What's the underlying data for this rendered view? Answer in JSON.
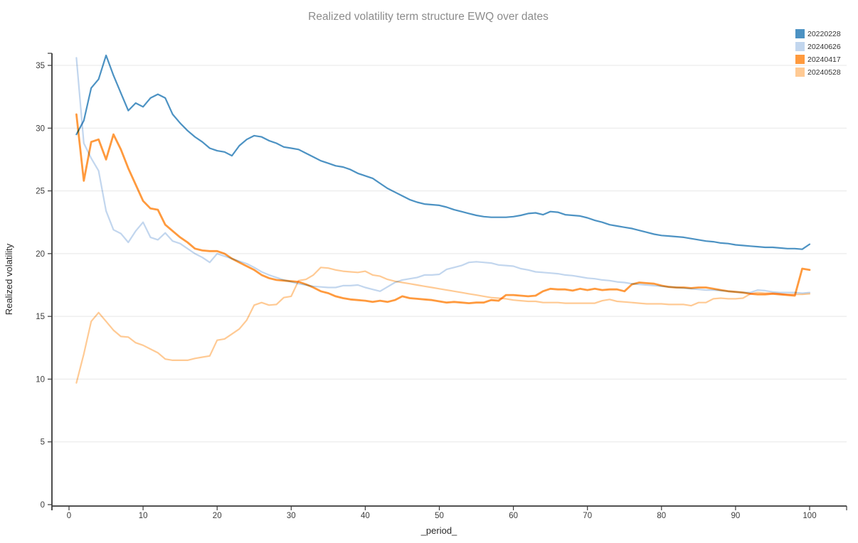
{
  "title": "Realized volatility term structure EWQ over dates",
  "chart_data": {
    "type": "line",
    "title": "Realized volatility term structure EWQ over dates",
    "xlabel": "_period_",
    "ylabel": "Realized volatility",
    "xlim": [
      -2.3,
      105
    ],
    "ylim": [
      0,
      36
    ],
    "x_ticks": [
      0,
      10,
      20,
      30,
      40,
      50,
      60,
      70,
      80,
      90,
      100
    ],
    "y_ticks": [
      0,
      5,
      10,
      15,
      20,
      25,
      30,
      35
    ],
    "grid": "horizontal-only",
    "legend_position": "top-right",
    "x_start": 1,
    "x_step": 1,
    "series": [
      {
        "name": "20220228",
        "color": "#4c92c3",
        "width": 2.2,
        "values": [
          29.5,
          30.6,
          33.2,
          33.9,
          35.8,
          34.2,
          32.8,
          31.4,
          32.0,
          31.7,
          32.4,
          32.7,
          32.4,
          31.1,
          30.4,
          29.8,
          29.3,
          28.9,
          28.4,
          28.2,
          28.1,
          27.8,
          28.6,
          29.1,
          29.4,
          29.3,
          29.0,
          28.8,
          28.5,
          28.4,
          28.3,
          28.0,
          27.7,
          27.4,
          27.2,
          27.0,
          26.9,
          26.7,
          26.4,
          26.2,
          26.0,
          25.6,
          25.2,
          24.9,
          24.6,
          24.3,
          24.1,
          23.95,
          23.9,
          23.85,
          23.7,
          23.5,
          23.35,
          23.2,
          23.05,
          22.95,
          22.9,
          22.9,
          22.9,
          22.95,
          23.05,
          23.2,
          23.25,
          23.1,
          23.35,
          23.3,
          23.1,
          23.05,
          23.0,
          22.85,
          22.65,
          22.5,
          22.3,
          22.2,
          22.1,
          22.0,
          21.85,
          21.7,
          21.55,
          21.45,
          21.4,
          21.35,
          21.3,
          21.2,
          21.1,
          21.0,
          20.95,
          20.85,
          20.8,
          20.7,
          20.65,
          20.6,
          20.55,
          20.5,
          20.5,
          20.45,
          20.4,
          20.4,
          20.35,
          20.75
        ]
      },
      {
        "name": "20240626",
        "color": "#c2d6ee",
        "width": 2.2,
        "values": [
          35.6,
          28.8,
          27.6,
          26.6,
          23.4,
          21.9,
          21.6,
          20.9,
          21.8,
          22.5,
          21.3,
          21.1,
          21.65,
          21.0,
          20.8,
          20.4,
          20.0,
          19.7,
          19.3,
          20.0,
          19.8,
          19.6,
          19.4,
          19.2,
          18.9,
          18.55,
          18.3,
          18.1,
          17.9,
          17.75,
          17.6,
          17.5,
          17.4,
          17.35,
          17.3,
          17.3,
          17.45,
          17.45,
          17.5,
          17.3,
          17.15,
          17.0,
          17.35,
          17.7,
          17.9,
          18.0,
          18.1,
          18.3,
          18.3,
          18.35,
          18.75,
          18.9,
          19.05,
          19.3,
          19.35,
          19.3,
          19.25,
          19.1,
          19.05,
          19.0,
          18.8,
          18.7,
          18.55,
          18.5,
          18.45,
          18.4,
          18.3,
          18.25,
          18.15,
          18.05,
          18.0,
          17.9,
          17.85,
          17.75,
          17.7,
          17.6,
          17.55,
          17.5,
          17.45,
          17.4,
          17.35,
          17.3,
          17.25,
          17.2,
          17.15,
          17.1,
          17.1,
          17.05,
          17.0,
          16.95,
          16.9,
          16.9,
          17.1,
          17.05,
          16.95,
          16.9,
          16.9,
          16.9,
          16.85,
          16.9
        ]
      },
      {
        "name": "20240417",
        "color": "#ff9a3e",
        "width": 2.8,
        "values": [
          31.1,
          25.8,
          28.9,
          29.1,
          27.5,
          29.5,
          28.3,
          26.8,
          25.5,
          24.2,
          23.6,
          23.5,
          22.3,
          21.8,
          21.3,
          20.9,
          20.4,
          20.25,
          20.2,
          20.2,
          20.0,
          19.6,
          19.3,
          19.0,
          18.7,
          18.3,
          18.05,
          17.9,
          17.85,
          17.8,
          17.75,
          17.55,
          17.3,
          17.0,
          16.85,
          16.6,
          16.45,
          16.35,
          16.3,
          16.25,
          16.15,
          16.25,
          16.15,
          16.3,
          16.6,
          16.45,
          16.4,
          16.35,
          16.3,
          16.2,
          16.1,
          16.15,
          16.1,
          16.05,
          16.1,
          16.1,
          16.3,
          16.25,
          16.7,
          16.7,
          16.65,
          16.6,
          16.65,
          17.0,
          17.2,
          17.15,
          17.15,
          17.05,
          17.2,
          17.1,
          17.2,
          17.1,
          17.15,
          17.15,
          17.0,
          17.55,
          17.7,
          17.65,
          17.6,
          17.45,
          17.35,
          17.3,
          17.3,
          17.25,
          17.3,
          17.3,
          17.2,
          17.1,
          17.0,
          16.95,
          16.9,
          16.8,
          16.75,
          16.75,
          16.8,
          16.75,
          16.7,
          16.65,
          18.8,
          18.7
        ]
      },
      {
        "name": "20240528",
        "color": "#ffca94",
        "width": 2.2,
        "values": [
          9.7,
          12.0,
          14.6,
          15.3,
          14.6,
          13.9,
          13.4,
          13.35,
          12.9,
          12.7,
          12.4,
          12.1,
          11.6,
          11.5,
          11.5,
          11.5,
          11.65,
          11.75,
          11.85,
          13.1,
          13.2,
          13.6,
          14.0,
          14.7,
          15.9,
          16.1,
          15.9,
          15.95,
          16.5,
          16.6,
          17.85,
          17.95,
          18.3,
          18.9,
          18.85,
          18.7,
          18.6,
          18.55,
          18.5,
          18.6,
          18.3,
          18.2,
          17.95,
          17.8,
          17.7,
          17.6,
          17.5,
          17.4,
          17.3,
          17.2,
          17.1,
          17.0,
          16.9,
          16.8,
          16.7,
          16.6,
          16.5,
          16.45,
          16.4,
          16.3,
          16.25,
          16.2,
          16.2,
          16.1,
          16.1,
          16.1,
          16.05,
          16.05,
          16.05,
          16.05,
          16.05,
          16.25,
          16.35,
          16.2,
          16.15,
          16.1,
          16.05,
          16.0,
          16.0,
          16.0,
          15.95,
          15.95,
          15.95,
          15.85,
          16.1,
          16.1,
          16.4,
          16.45,
          16.4,
          16.4,
          16.45,
          16.8,
          16.9,
          16.85,
          16.85,
          16.8,
          16.75,
          16.75,
          16.75,
          16.8
        ]
      }
    ],
    "style": {
      "title_color": "#8c8c8c",
      "axis_color": "#3a3a3a",
      "grid_color": "#e7e7e7",
      "tick_label_color": "#3c3c3c"
    }
  }
}
